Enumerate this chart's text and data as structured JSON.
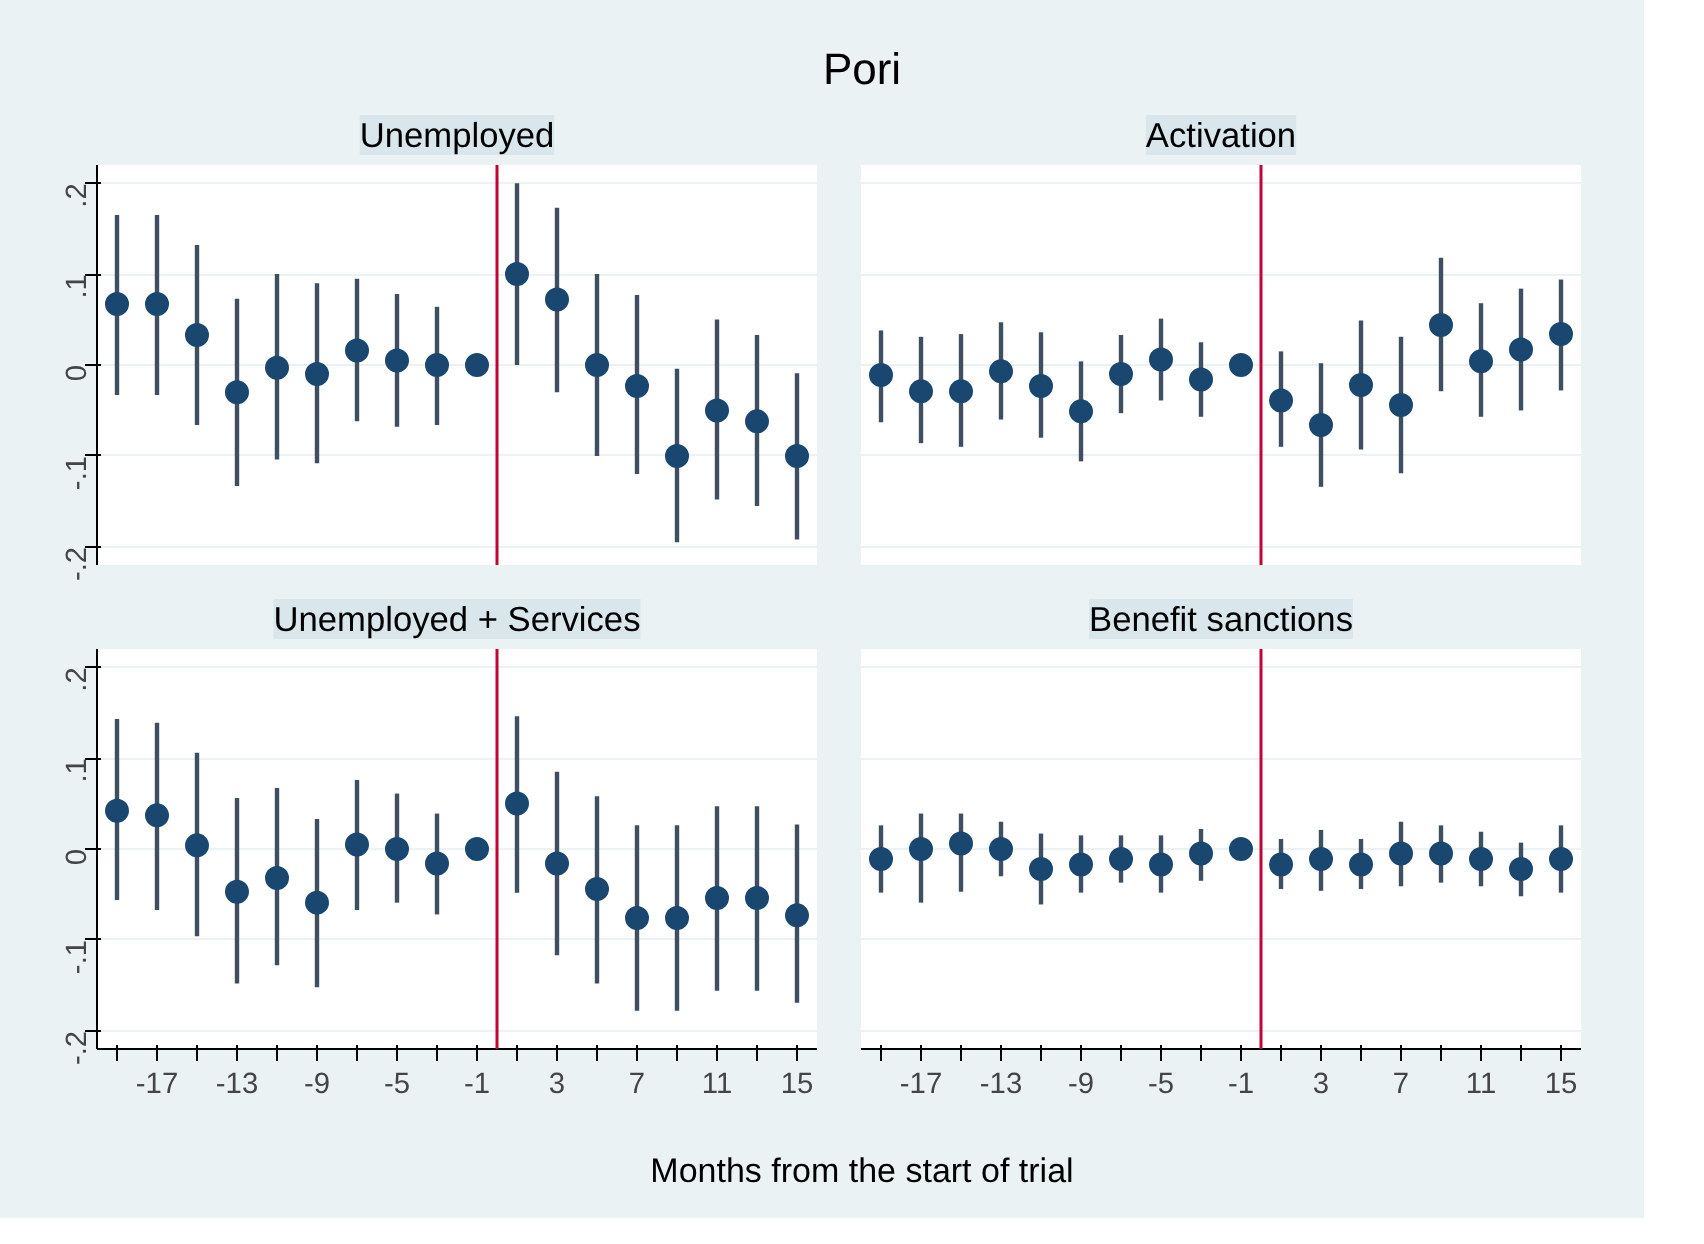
{
  "chart_data": [
    {
      "type": "scatter",
      "title": "Unemployed",
      "annotations": [
        "Pori"
      ],
      "x": [
        -19,
        -17,
        -15,
        -13,
        -11,
        -9,
        -7,
        -5,
        -3,
        -1,
        1,
        3,
        5,
        7,
        9,
        11,
        13,
        15
      ],
      "series": [
        {
          "color": "#1a476f",
          "values": [
            0.067,
            0.067,
            0.033,
            -0.03,
            -0.003,
            -0.01,
            0.016,
            0.005,
            0,
            0,
            0.1,
            0.072,
            0,
            -0.023,
            -0.1,
            -0.05,
            -0.062,
            -0.1
          ],
          "errors": [
            [
              -0.033,
              0.165
            ],
            [
              -0.033,
              0.165
            ],
            [
              -0.066,
              0.132
            ],
            [
              -0.133,
              0.073
            ],
            [
              -0.104,
              0.1
            ],
            [
              -0.108,
              0.09
            ],
            [
              -0.062,
              0.095
            ],
            [
              -0.068,
              0.078
            ],
            [
              -0.066,
              0.064
            ],
            null,
            [
              0,
              0.2
            ],
            [
              -0.03,
              0.173
            ],
            [
              -0.1,
              0.1
            ],
            [
              -0.12,
              0.077
            ],
            [
              -0.195,
              -0.004
            ],
            [
              -0.148,
              0.05
            ],
            [
              -0.155,
              0.033
            ],
            [
              -0.192,
              -0.009
            ]
          ]
        }
      ],
      "xlim": [
        -20,
        16
      ],
      "ylim": [
        -0.22,
        0.22
      ],
      "yticks": [
        {
          "value": -0.2,
          "label": "-.2"
        },
        {
          "value": -0.1,
          "label": "-.1"
        },
        0,
        {
          "value": 0.1,
          "label": ".1"
        },
        {
          "value": 0.2,
          "label": ".2"
        }
      ],
      "ref_lines": [
        {
          "axis": "x",
          "value": 0,
          "color": "#c10534"
        }
      ],
      "grid": "y",
      "marker": "circle",
      "tick_labels": "y"
    },
    {
      "type": "scatter",
      "title": "Activation",
      "x": [
        -19,
        -17,
        -15,
        -13,
        -11,
        -9,
        -7,
        -5,
        -3,
        -1,
        1,
        3,
        5,
        7,
        9,
        11,
        13,
        15
      ],
      "series": [
        {
          "color": "#1a476f",
          "values": [
            -0.011,
            -0.029,
            -0.029,
            -0.007,
            -0.023,
            -0.051,
            -0.01,
            0.006,
            -0.016,
            0,
            -0.039,
            -0.066,
            -0.022,
            -0.044,
            0.044,
            0.004,
            0.017,
            0.034
          ],
          "errors": [
            [
              -0.063,
              0.038
            ],
            [
              -0.086,
              0.031
            ],
            [
              -0.09,
              0.034
            ],
            [
              -0.06,
              0.047
            ],
            [
              -0.08,
              0.036
            ],
            [
              -0.106,
              0.004
            ],
            [
              -0.053,
              0.033
            ],
            [
              -0.039,
              0.051
            ],
            [
              -0.057,
              0.025
            ],
            null,
            [
              -0.09,
              0.015
            ],
            [
              -0.134,
              0.002
            ],
            [
              -0.093,
              0.049
            ],
            [
              -0.119,
              0.031
            ],
            [
              -0.029,
              0.118
            ],
            [
              -0.057,
              0.068
            ],
            [
              -0.05,
              0.084
            ],
            [
              -0.028,
              0.094
            ]
          ]
        }
      ],
      "xlim": [
        -20,
        16
      ],
      "ylim": [
        -0.22,
        0.22
      ],
      "yticks": [
        {
          "value": -0.2,
          "label": null
        },
        {
          "value": -0.1,
          "label": null
        },
        {
          "value": 0,
          "label": null
        },
        {
          "value": 0.1,
          "label": null
        },
        {
          "value": 0.2,
          "label": null
        }
      ],
      "ref_lines": [
        {
          "axis": "x",
          "value": 0,
          "color": "#c10534"
        }
      ],
      "grid": "y",
      "marker": "circle",
      "tick_labels": false
    },
    {
      "type": "scatter",
      "title": "Unemployed + Services",
      "xlabel": "Months from the start of trial",
      "x": [
        -19,
        -17,
        -15,
        -13,
        -11,
        -9,
        -7,
        -5,
        -3,
        -1,
        1,
        3,
        5,
        7,
        9,
        11,
        13,
        15
      ],
      "series": [
        {
          "color": "#1a476f",
          "values": [
            0.042,
            0.037,
            0.004,
            -0.047,
            -0.032,
            -0.059,
            0.005,
            0,
            -0.016,
            0,
            0.05,
            -0.016,
            -0.044,
            -0.076,
            -0.076,
            -0.054,
            -0.054,
            -0.073
          ],
          "errors": [
            [
              -0.056,
              0.143
            ],
            [
              -0.067,
              0.139
            ],
            [
              -0.096,
              0.106
            ],
            [
              -0.148,
              0.056
            ],
            [
              -0.128,
              0.067
            ],
            [
              -0.152,
              0.033
            ],
            [
              -0.067,
              0.076
            ],
            [
              -0.059,
              0.061
            ],
            [
              -0.072,
              0.039
            ],
            null,
            [
              -0.048,
              0.146
            ],
            [
              -0.117,
              0.085
            ],
            [
              -0.148,
              0.058
            ],
            [
              -0.178,
              0.026
            ],
            [
              -0.178,
              0.026
            ],
            [
              -0.156,
              0.047
            ],
            [
              -0.156,
              0.047
            ],
            [
              -0.169,
              0.027
            ]
          ]
        }
      ],
      "xlim": [
        -20,
        16
      ],
      "ylim": [
        -0.22,
        0.22
      ],
      "xticks": [
        {
          "value": -19,
          "label": null
        },
        {
          "value": -17,
          "label": "-17"
        },
        {
          "value": -15,
          "label": null
        },
        {
          "value": -13,
          "label": "-13"
        },
        {
          "value": -11,
          "label": null
        },
        {
          "value": -9,
          "label": "-9"
        },
        {
          "value": -7,
          "label": null
        },
        {
          "value": -5,
          "label": "-5"
        },
        {
          "value": -3,
          "label": null
        },
        {
          "value": -1,
          "label": "-1"
        },
        {
          "value": 1,
          "label": null
        },
        {
          "value": 3,
          "label": "3"
        },
        {
          "value": 5,
          "label": null
        },
        {
          "value": 7,
          "label": "7"
        },
        {
          "value": 9,
          "label": null
        },
        {
          "value": 11,
          "label": "11"
        },
        {
          "value": 13,
          "label": null
        },
        {
          "value": 15,
          "label": "15"
        }
      ],
      "yticks": [
        {
          "value": -0.2,
          "label": "-.2"
        },
        {
          "value": -0.1,
          "label": "-.1"
        },
        0,
        {
          "value": 0.1,
          "label": ".1"
        },
        {
          "value": 0.2,
          "label": ".2"
        }
      ],
      "ref_lines": [
        {
          "axis": "x",
          "value": 0,
          "color": "#c10534"
        }
      ],
      "grid": "y",
      "marker": "circle"
    },
    {
      "type": "scatter",
      "title": "Benefit sanctions",
      "x": [
        -19,
        -17,
        -15,
        -13,
        -11,
        -9,
        -7,
        -5,
        -3,
        -1,
        1,
        3,
        5,
        7,
        9,
        11,
        13,
        15
      ],
      "series": [
        {
          "color": "#1a476f",
          "values": [
            -0.011,
            0,
            0.006,
            0,
            -0.022,
            -0.017,
            -0.011,
            -0.017,
            -0.005,
            0,
            -0.017,
            -0.011,
            -0.017,
            -0.005,
            -0.005,
            -0.011,
            -0.022,
            -0.011
          ],
          "errors": [
            [
              -0.048,
              0.026
            ],
            [
              -0.059,
              0.039
            ],
            [
              -0.047,
              0.039
            ],
            [
              -0.03,
              0.03
            ],
            [
              -0.061,
              0.017
            ],
            [
              -0.048,
              0.015
            ],
            [
              -0.037,
              0.015
            ],
            [
              -0.048,
              0.015
            ],
            [
              -0.035,
              0.022
            ],
            null,
            [
              -0.044,
              0.011
            ],
            [
              -0.046,
              0.021
            ],
            [
              -0.044,
              0.011
            ],
            [
              -0.041,
              0.03
            ],
            [
              -0.037,
              0.026
            ],
            [
              -0.041,
              0.019
            ],
            [
              -0.052,
              0.007
            ],
            [
              -0.048,
              0.026
            ]
          ]
        }
      ],
      "xlim": [
        -20,
        16
      ],
      "ylim": [
        -0.22,
        0.22
      ],
      "xticks": [
        {
          "value": -19,
          "label": null
        },
        {
          "value": -17,
          "label": "-17"
        },
        {
          "value": -15,
          "label": null
        },
        {
          "value": -13,
          "label": "-13"
        },
        {
          "value": -11,
          "label": null
        },
        {
          "value": -9,
          "label": "-9"
        },
        {
          "value": -7,
          "label": null
        },
        {
          "value": -5,
          "label": "-5"
        },
        {
          "value": -3,
          "label": null
        },
        {
          "value": -1,
          "label": "-1"
        },
        {
          "value": 1,
          "label": null
        },
        {
          "value": 3,
          "label": "3"
        },
        {
          "value": 5,
          "label": null
        },
        {
          "value": 7,
          "label": "7"
        },
        {
          "value": 9,
          "label": null
        },
        {
          "value": 11,
          "label": "11"
        },
        {
          "value": 13,
          "label": null
        },
        {
          "value": 15,
          "label": "15"
        }
      ],
      "yticks": [
        {
          "value": -0.2,
          "label": null
        },
        {
          "value": -0.1,
          "label": null
        },
        {
          "value": 0,
          "label": null
        },
        {
          "value": 0.1,
          "label": null
        },
        {
          "value": 0.2,
          "label": null
        }
      ],
      "ref_lines": [
        {
          "axis": "x",
          "value": 0,
          "color": "#c10534"
        }
      ],
      "grid": "y",
      "marker": "circle",
      "tick_labels": "x"
    }
  ]
}
